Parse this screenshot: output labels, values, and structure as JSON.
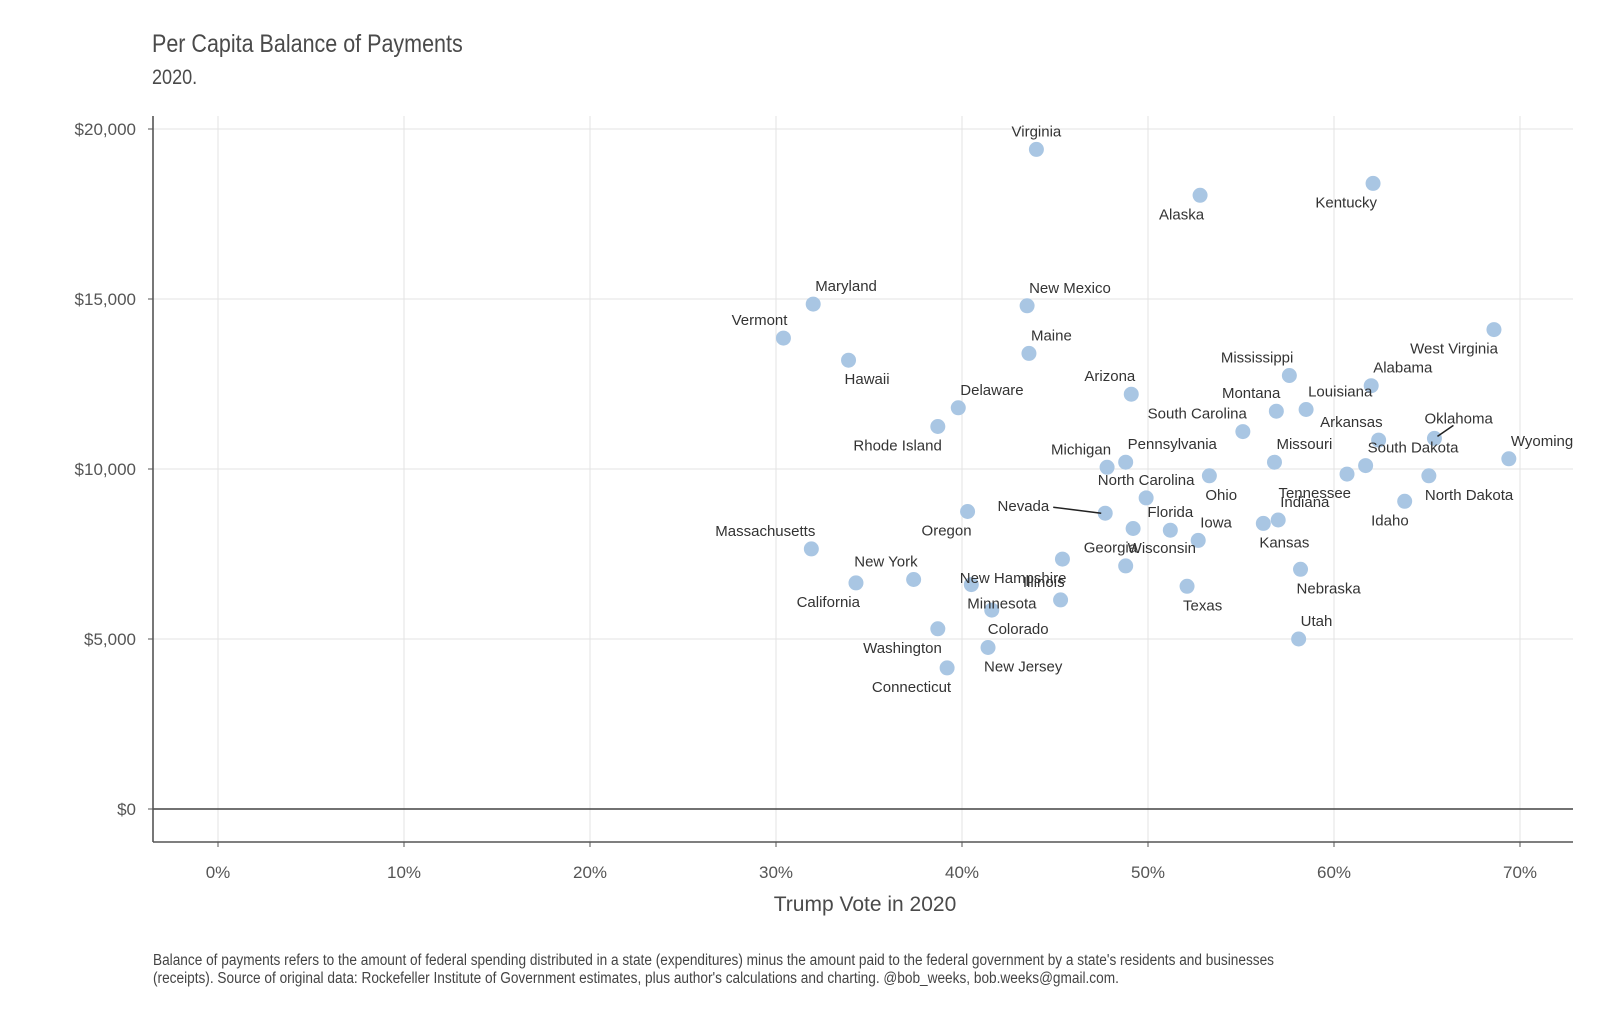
{
  "title": "Per Capita Balance of Payments",
  "subtitle": "2020.",
  "caption_line1": "Balance of payments refers to the amount of federal spending distributed in a state (expenditures) minus the amount paid to the federal government by a state's residents and businesses",
  "caption_line2": "(receipts). Source of original data: Rockefeller Institute of Government estimates, plus author's calculations and charting. @bob_weeks, bob.weeks@gmail.com.",
  "colors": {
    "point": "#a9c6e3",
    "grid": "#e3e3e3",
    "axis": "#555555",
    "zero_line": "#444444"
  },
  "chart_data": {
    "type": "scatter",
    "xlabel": "Trump Vote in 2020",
    "ylabel": "",
    "xlim": [
      -0.035,
      0.73
    ],
    "ylim": [
      -1000,
      20400
    ],
    "x_ticks": [
      0,
      0.1,
      0.2,
      0.3,
      0.4,
      0.5,
      0.6,
      0.7
    ],
    "x_tick_labels": [
      "0%",
      "10%",
      "20%",
      "30%",
      "40%",
      "50%",
      "60%",
      "70%"
    ],
    "y_ticks": [
      0,
      5000,
      10000,
      15000,
      20000
    ],
    "y_tick_labels": [
      "$0",
      "$5,000",
      "$10,000",
      "$15,000",
      "$20,000"
    ],
    "grid": true,
    "zero_line": true,
    "points": [
      {
        "label": "Virginia",
        "x": 0.44,
        "y": 19400,
        "pos": "above"
      },
      {
        "label": "Kentucky",
        "x": 0.621,
        "y": 18400,
        "pos": "below-left"
      },
      {
        "label": "Alaska",
        "x": 0.528,
        "y": 18050,
        "pos": "below-left"
      },
      {
        "label": "Maryland",
        "x": 0.32,
        "y": 14850,
        "pos": "above-right"
      },
      {
        "label": "New Mexico",
        "x": 0.435,
        "y": 14800,
        "pos": "above-right"
      },
      {
        "label": "West Virginia",
        "x": 0.686,
        "y": 14100,
        "pos": "below-left"
      },
      {
        "label": "Vermont",
        "x": 0.304,
        "y": 13850,
        "pos": "above-left"
      },
      {
        "label": "Maine",
        "x": 0.436,
        "y": 13400,
        "pos": "above-right"
      },
      {
        "label": "Hawaii",
        "x": 0.339,
        "y": 13200,
        "pos": "below-right"
      },
      {
        "label": "Mississippi",
        "x": 0.576,
        "y": 12750,
        "pos": "above-left"
      },
      {
        "label": "Alabama",
        "x": 0.62,
        "y": 12450,
        "pos": "above-right"
      },
      {
        "label": "Arizona",
        "x": 0.491,
        "y": 12200,
        "pos": "above-left"
      },
      {
        "label": "Delaware",
        "x": 0.398,
        "y": 11800,
        "pos": "above-right"
      },
      {
        "label": "Montana",
        "x": 0.569,
        "y": 11700,
        "pos": "above-left"
      },
      {
        "label": "Louisiana",
        "x": 0.585,
        "y": 11750,
        "pos": "above-right"
      },
      {
        "label": "Rhode Island",
        "x": 0.387,
        "y": 11250,
        "pos": "below-left"
      },
      {
        "label": "South Carolina",
        "x": 0.551,
        "y": 11100,
        "pos": "above-left"
      },
      {
        "label": "Oklahoma",
        "x": 0.654,
        "y": 10900,
        "pos": "above-right"
      },
      {
        "label": "Arkansas",
        "x": 0.624,
        "y": 10850,
        "pos": "above-left"
      },
      {
        "label": "Wyoming",
        "x": 0.694,
        "y": 10300,
        "pos": "above-right"
      },
      {
        "label": "Pennsylvania",
        "x": 0.488,
        "y": 10200,
        "pos": "above-right"
      },
      {
        "label": "Missouri",
        "x": 0.568,
        "y": 10200,
        "pos": "above-right"
      },
      {
        "label": "South Dakota",
        "x": 0.617,
        "y": 10100,
        "pos": "above-right"
      },
      {
        "label": "Michigan",
        "x": 0.478,
        "y": 10050,
        "pos": "above-left"
      },
      {
        "label": "Tennessee",
        "x": 0.607,
        "y": 9850,
        "pos": "below-left"
      },
      {
        "label": "Ohio",
        "x": 0.533,
        "y": 9800,
        "pos": "below-right"
      },
      {
        "label": "North Dakota",
        "x": 0.651,
        "y": 9800,
        "pos": "below-right"
      },
      {
        "label": "North Carolina",
        "x": 0.499,
        "y": 9150,
        "pos": "above"
      },
      {
        "label": "Idaho",
        "x": 0.638,
        "y": 9050,
        "pos": "below-left"
      },
      {
        "label": "Oregon",
        "x": 0.403,
        "y": 8750,
        "pos": "below-left"
      },
      {
        "label": "Nevada",
        "x": 0.477,
        "y": 8700,
        "pos": "left-leader"
      },
      {
        "label": "Indiana",
        "x": 0.57,
        "y": 8500,
        "pos": "above-right"
      },
      {
        "label": "Kansas",
        "x": 0.562,
        "y": 8400,
        "pos": "below-right"
      },
      {
        "label": "Florida",
        "x": 0.512,
        "y": 8200,
        "pos": "above"
      },
      {
        "label": "Georgia",
        "x": 0.492,
        "y": 8250,
        "pos": "below-left"
      },
      {
        "label": "Iowa",
        "x": 0.527,
        "y": 7900,
        "pos": "above-right"
      },
      {
        "label": "Massachusetts",
        "x": 0.319,
        "y": 7650,
        "pos": "above-left"
      },
      {
        "label": "New Hampshire",
        "x": 0.454,
        "y": 7350,
        "pos": "below-left"
      },
      {
        "label": "Wisconsin",
        "x": 0.488,
        "y": 7150,
        "pos": "above-right"
      },
      {
        "label": "Nebraska",
        "x": 0.582,
        "y": 7050,
        "pos": "below-right"
      },
      {
        "label": "New York",
        "x": 0.374,
        "y": 6750,
        "pos": "above-left"
      },
      {
        "label": "California",
        "x": 0.343,
        "y": 6650,
        "pos": "below-left"
      },
      {
        "label": "Minnesota",
        "x": 0.405,
        "y": 6600,
        "pos": "below-right"
      },
      {
        "label": "Texas",
        "x": 0.521,
        "y": 6550,
        "pos": "below-right"
      },
      {
        "label": "Illinois",
        "x": 0.453,
        "y": 6150,
        "pos": "above-left"
      },
      {
        "label": "Colorado",
        "x": 0.416,
        "y": 5850,
        "pos": "below-right"
      },
      {
        "label": "Washington",
        "x": 0.387,
        "y": 5300,
        "pos": "below-left"
      },
      {
        "label": "Utah",
        "x": 0.581,
        "y": 5000,
        "pos": "above-right"
      },
      {
        "label": "New Jersey",
        "x": 0.414,
        "y": 4750,
        "pos": "below-right"
      },
      {
        "label": "Connecticut",
        "x": 0.392,
        "y": 4150,
        "pos": "below-left"
      }
    ]
  }
}
